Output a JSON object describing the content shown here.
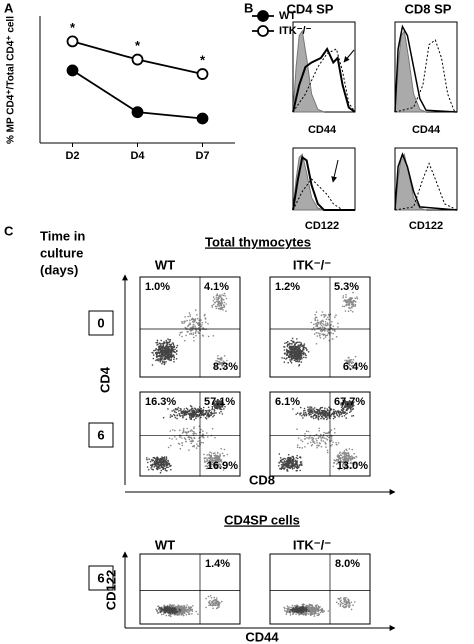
{
  "chart_data": {
    "type": "line",
    "ylabel": "% MP CD4⁺/Total CD4⁺ cell",
    "categories": [
      "D2",
      "D4",
      "D7"
    ],
    "series": [
      {
        "name": "WT",
        "color": "#000000",
        "marker": "filled",
        "values": [
          40,
          17,
          13.5
        ]
      },
      {
        "name": "ITK⁻/⁻",
        "color": "#000000",
        "marker": "open",
        "values": [
          56,
          46,
          38
        ]
      }
    ],
    "annotations": [
      "*",
      "*",
      "*"
    ],
    "ylim": [
      0,
      70
    ]
  },
  "panels": {
    "A": {
      "label": "A"
    },
    "B": {
      "label": "B",
      "titles": [
        "CD4 SP",
        "CD8 SP"
      ],
      "x_labels": [
        "CD44",
        "CD44",
        "CD122",
        "CD122"
      ]
    },
    "C": {
      "label": "C",
      "time_label": [
        "Time in",
        "culture",
        "(days)"
      ],
      "section1": {
        "title": "Total thymocytes",
        "columns": [
          "WT",
          "ITK⁻/⁻"
        ],
        "y_axis": "CD4",
        "x_axis": "CD8",
        "rows": [
          {
            "day": "0",
            "quadrants": [
              [
                "1.0%",
                "4.1%",
                "8.3%"
              ],
              [
                "1.2%",
                "5.3%",
                "6.4%"
              ]
            ]
          },
          {
            "day": "6",
            "quadrants": [
              [
                "16.3%",
                "57.1%",
                "16.9%"
              ],
              [
                "6.1%",
                "67.7%",
                "13.0%"
              ]
            ]
          }
        ]
      },
      "section2": {
        "title": "CD4SP cells",
        "columns": [
          "WT",
          "ITK⁻/⁻"
        ],
        "y_axis": "CD122",
        "x_axis": "CD44",
        "day": "6",
        "quadrants": [
          "1.4%",
          "8.0%"
        ]
      }
    }
  }
}
